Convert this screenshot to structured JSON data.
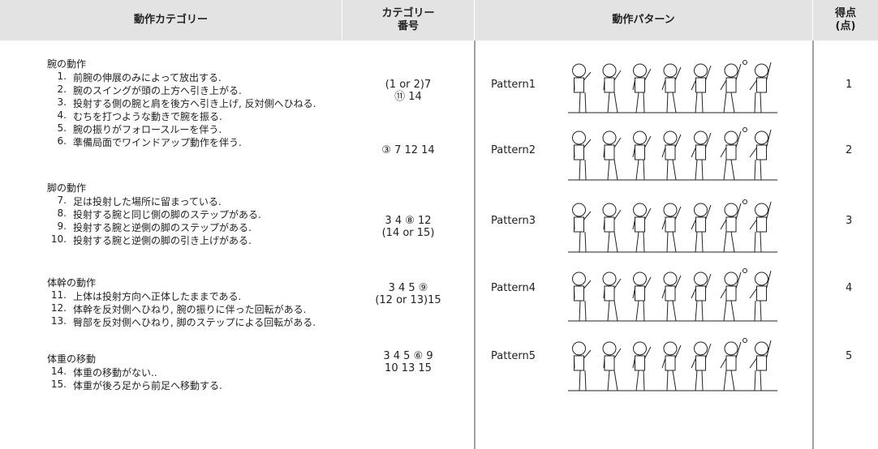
{
  "header": {
    "category": "動作カテゴリー",
    "number": [
      "カテゴリー",
      "番号"
    ],
    "pattern": "動作パターン",
    "score": [
      "得点",
      "(点)"
    ]
  },
  "categories": [
    {
      "title": "腕の動作",
      "items": [
        {
          "number": "1.",
          "text": "前腕の伸展のみによって放出する."
        },
        {
          "number": "2.",
          "text": "腕のスイングが頭の上方へ引き上がる."
        },
        {
          "number": "3.",
          "text": "投射する側の腕と肩を後方へ引き上げ, 反対側へひねる."
        },
        {
          "number": "4.",
          "text": "むちを打つような動きで腕を振る."
        },
        {
          "number": "5.",
          "text": "腕の振りがフォロースルーを伴う."
        },
        {
          "number": "6.",
          "text": "準備局面でワインドアップ動作を伴う."
        }
      ]
    },
    {
      "title": "脚の動作",
      "items": [
        {
          "number": "7.",
          "text": "足は投射した場所に留まっている."
        },
        {
          "number": "8.",
          "text": "投射する腕と同じ側の脚のステップがある."
        },
        {
          "number": "9.",
          "text": "投射する腕と逆側の脚のステップがある."
        },
        {
          "number": "10.",
          "text": "投射する腕と逆側の脚の引き上げがある."
        }
      ]
    },
    {
      "title": "体幹の動作",
      "items": [
        {
          "number": "11.",
          "text": "上体は投射方向へ正体したままである."
        },
        {
          "number": "12.",
          "text": "体幹を反対側へひねり, 腕の振りに伴った回転がある."
        },
        {
          "number": "13.",
          "text": "臀部を反対側へひねり, 脚のステップによる回転がある."
        }
      ]
    },
    {
      "title": "体重の移動",
      "items": [
        {
          "number": "14.",
          "text": "体重の移動がない.."
        },
        {
          "number": "15.",
          "text": "体重が後ろ足から前足へ移動する."
        }
      ]
    }
  ],
  "patterns": [
    {
      "codes": [
        "(1 or 2)7",
        "⑪ 14"
      ],
      "name": "Pattern1",
      "score": "1"
    },
    {
      "codes": [
        "③ 7 12 14"
      ],
      "name": "Pattern2",
      "score": "2"
    },
    {
      "codes": [
        "3 4 ⑧ 12",
        "(14 or 15)"
      ],
      "name": "Pattern3",
      "score": "3"
    },
    {
      "codes": [
        "3 4 5 ⑨",
        "(12 or 13)15"
      ],
      "name": "Pattern4",
      "score": "4"
    },
    {
      "codes": [
        "3 4 5 ⑥ 9",
        "10 13 15"
      ],
      "name": "Pattern5",
      "score": "5"
    }
  ]
}
